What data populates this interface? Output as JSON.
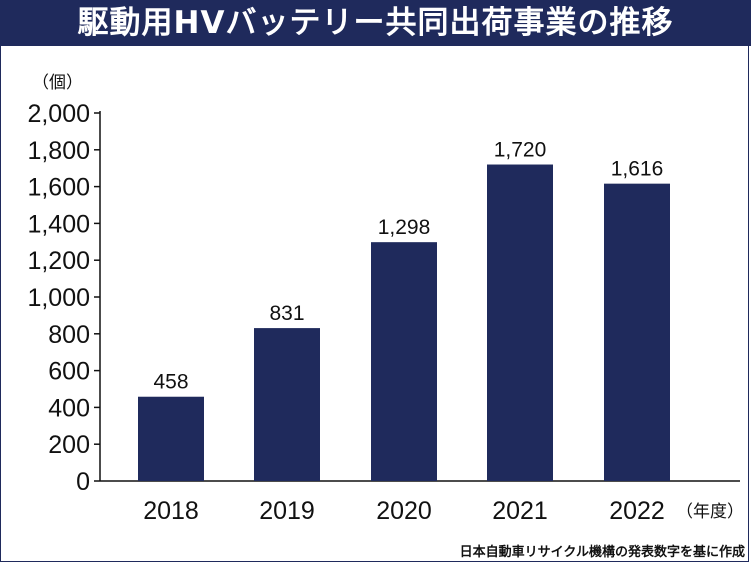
{
  "header": {
    "title": "駆動用HVバッテリー共同出荷事業の推移"
  },
  "colors": {
    "header_bg": "#1f2a5c",
    "bar": "#1f2a5c",
    "text": "#111111"
  },
  "footer": {
    "source": "日本自動車リサイクル機構の発表数字を基に作成"
  },
  "chart_data": {
    "type": "bar",
    "title": "駆動用HVバッテリー共同出荷事業の推移",
    "categories": [
      "2018",
      "2019",
      "2020",
      "2021",
      "2022"
    ],
    "values": [
      458,
      831,
      1298,
      1720,
      1616
    ],
    "value_labels": [
      "458",
      "831",
      "1,298",
      "1,720",
      "1,616"
    ],
    "ylabel": "（個）",
    "xlabel": "（年度）",
    "ylim": [
      0,
      2000
    ],
    "yticks": [
      0,
      200,
      400,
      600,
      800,
      1000,
      1200,
      1400,
      1600,
      1800,
      2000
    ],
    "ytick_labels": [
      "0",
      "200",
      "400",
      "600",
      "800",
      "1,000",
      "1,200",
      "1,400",
      "1,600",
      "1,800",
      "2,000"
    ],
    "grid": false,
    "legend": "none"
  }
}
